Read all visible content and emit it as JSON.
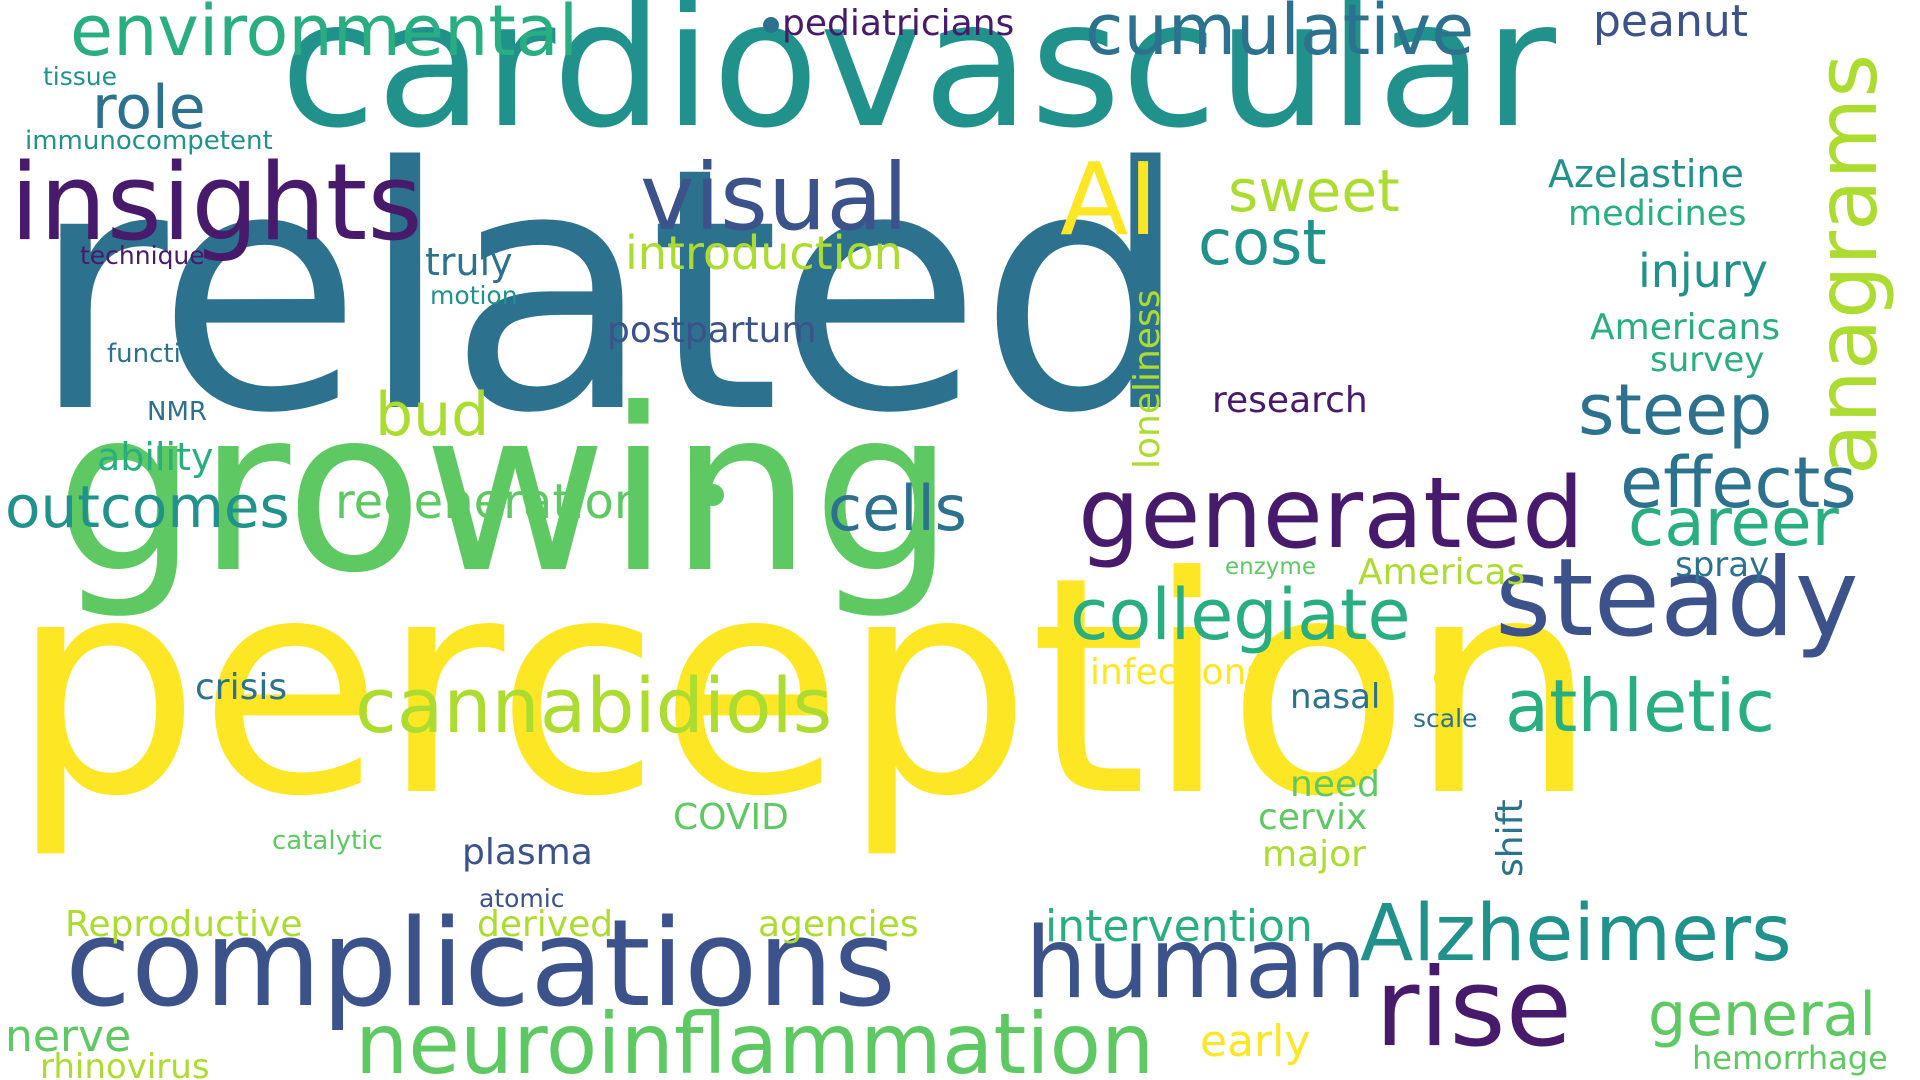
{
  "wordcloud": {
    "palette": {
      "deep_purple": "#481a6c",
      "indigo": "#3b528b",
      "blue": "#2c728e",
      "teal": "#21918c",
      "green_teal": "#28ae80",
      "green": "#5ec962",
      "lime": "#addc30",
      "yellow": "#fde725"
    },
    "words": {
      "related": "related",
      "perception": "perception",
      "growing": "growing",
      "cardiovascular": "cardiovascular",
      "complications": "complications",
      "insights": "insights",
      "neuroinflammation": "neuroinflammation",
      "generated": "generated",
      "steady": "steady",
      "rise": "rise",
      "alzheimers": "Alzheimers",
      "human": "human",
      "anagrams": "anagrams",
      "visual": "visual",
      "cumulative": "cumulative",
      "environmental": "environmental",
      "ai": "AI",
      "cannabidiols": "cannabidiols",
      "collegiate": "collegiate",
      "athletic": "athletic",
      "effects": "effects",
      "outcomes": "outcomes",
      "cells": "cells",
      "steep": "steep",
      "career": "career",
      "general": "general",
      "role": "role",
      "cost": "cost",
      "sweet": "sweet",
      "bud": "bud",
      "regeneration": "regeneration",
      "peanut": "peanut",
      "introduction": "introduction",
      "injury": "injury",
      "intervention": "intervention",
      "pediatricians": "pediatricians",
      "azelastine": "Azelastine",
      "medicines": "medicines",
      "americans": "Americans",
      "postpartum": "postpartum",
      "truly": "truly",
      "survey": "survey",
      "research": "research",
      "loneliness": "loneliness",
      "ability": "ability",
      "crisis": "crisis",
      "infections": "infections",
      "americas": "Americas",
      "spray": "spray",
      "nasal": "nasal",
      "plasma": "plasma",
      "covid": "COVID",
      "need": "need",
      "cervix": "cervix",
      "shift": "shift",
      "major": "major",
      "derived": "derived",
      "agencies": "agencies",
      "reproductive": "Reproductive",
      "nerve": "nerve",
      "rhinovirus": "rhinovirus",
      "early": "early",
      "hemorrhage": "hemorrhage",
      "immunocompetent": "immunocompetent",
      "tissue": "tissue",
      "technique": "technique",
      "motion": "motion",
      "function": "function",
      "nmr": "NMR",
      "enzyme": "enzyme",
      "scale": "scale",
      "catalytic": "catalytic",
      "atomic": "atomic"
    }
  }
}
